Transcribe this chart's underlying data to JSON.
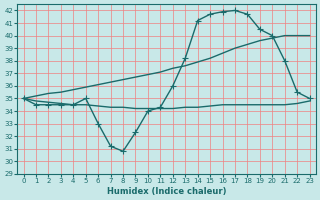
{
  "xlabel": "Humidex (Indice chaleur)",
  "bg_color": "#c8e8e8",
  "grid_color": "#f08080",
  "line_color": "#1a6b6b",
  "x_values": [
    0,
    1,
    2,
    3,
    4,
    5,
    6,
    7,
    8,
    9,
    10,
    11,
    12,
    13,
    14,
    15,
    16,
    17,
    18,
    19,
    20,
    21,
    22,
    23
  ],
  "curve_markers": [
    0,
    1,
    2,
    3,
    4,
    5,
    6,
    7,
    8,
    9,
    10,
    11,
    12,
    13,
    14,
    15,
    16,
    17,
    18,
    19,
    20,
    21,
    22,
    23
  ],
  "line_curve": [
    35.0,
    34.5,
    34.5,
    34.5,
    34.5,
    35.0,
    33.0,
    31.2,
    30.8,
    32.3,
    34.0,
    34.3,
    36.0,
    38.2,
    41.2,
    41.7,
    41.9,
    42.0,
    41.7,
    40.5,
    40.0,
    38.0,
    35.5,
    35.0
  ],
  "line_upper": [
    35.0,
    35.2,
    35.4,
    35.5,
    35.7,
    35.9,
    36.1,
    36.3,
    36.5,
    36.7,
    36.9,
    37.1,
    37.4,
    37.6,
    37.9,
    38.2,
    38.6,
    39.0,
    39.3,
    39.6,
    39.8,
    40.0,
    40.0,
    40.0
  ],
  "line_lower": [
    35.0,
    34.8,
    34.7,
    34.6,
    34.5,
    34.5,
    34.4,
    34.3,
    34.3,
    34.2,
    34.2,
    34.2,
    34.2,
    34.3,
    34.3,
    34.4,
    34.5,
    34.5,
    34.5,
    34.5,
    34.5,
    34.5,
    34.6,
    34.8
  ],
  "ylim": [
    29,
    42.5
  ],
  "xlim": [
    -0.5,
    23.5
  ],
  "yticks": [
    29,
    30,
    31,
    32,
    33,
    34,
    35,
    36,
    37,
    38,
    39,
    40,
    41,
    42
  ],
  "xticks": [
    0,
    1,
    2,
    3,
    4,
    5,
    6,
    7,
    8,
    9,
    10,
    11,
    12,
    13,
    14,
    15,
    16,
    17,
    18,
    19,
    20,
    21,
    22,
    23
  ],
  "marker": "+",
  "marker_size": 4,
  "linewidth": 1.0
}
